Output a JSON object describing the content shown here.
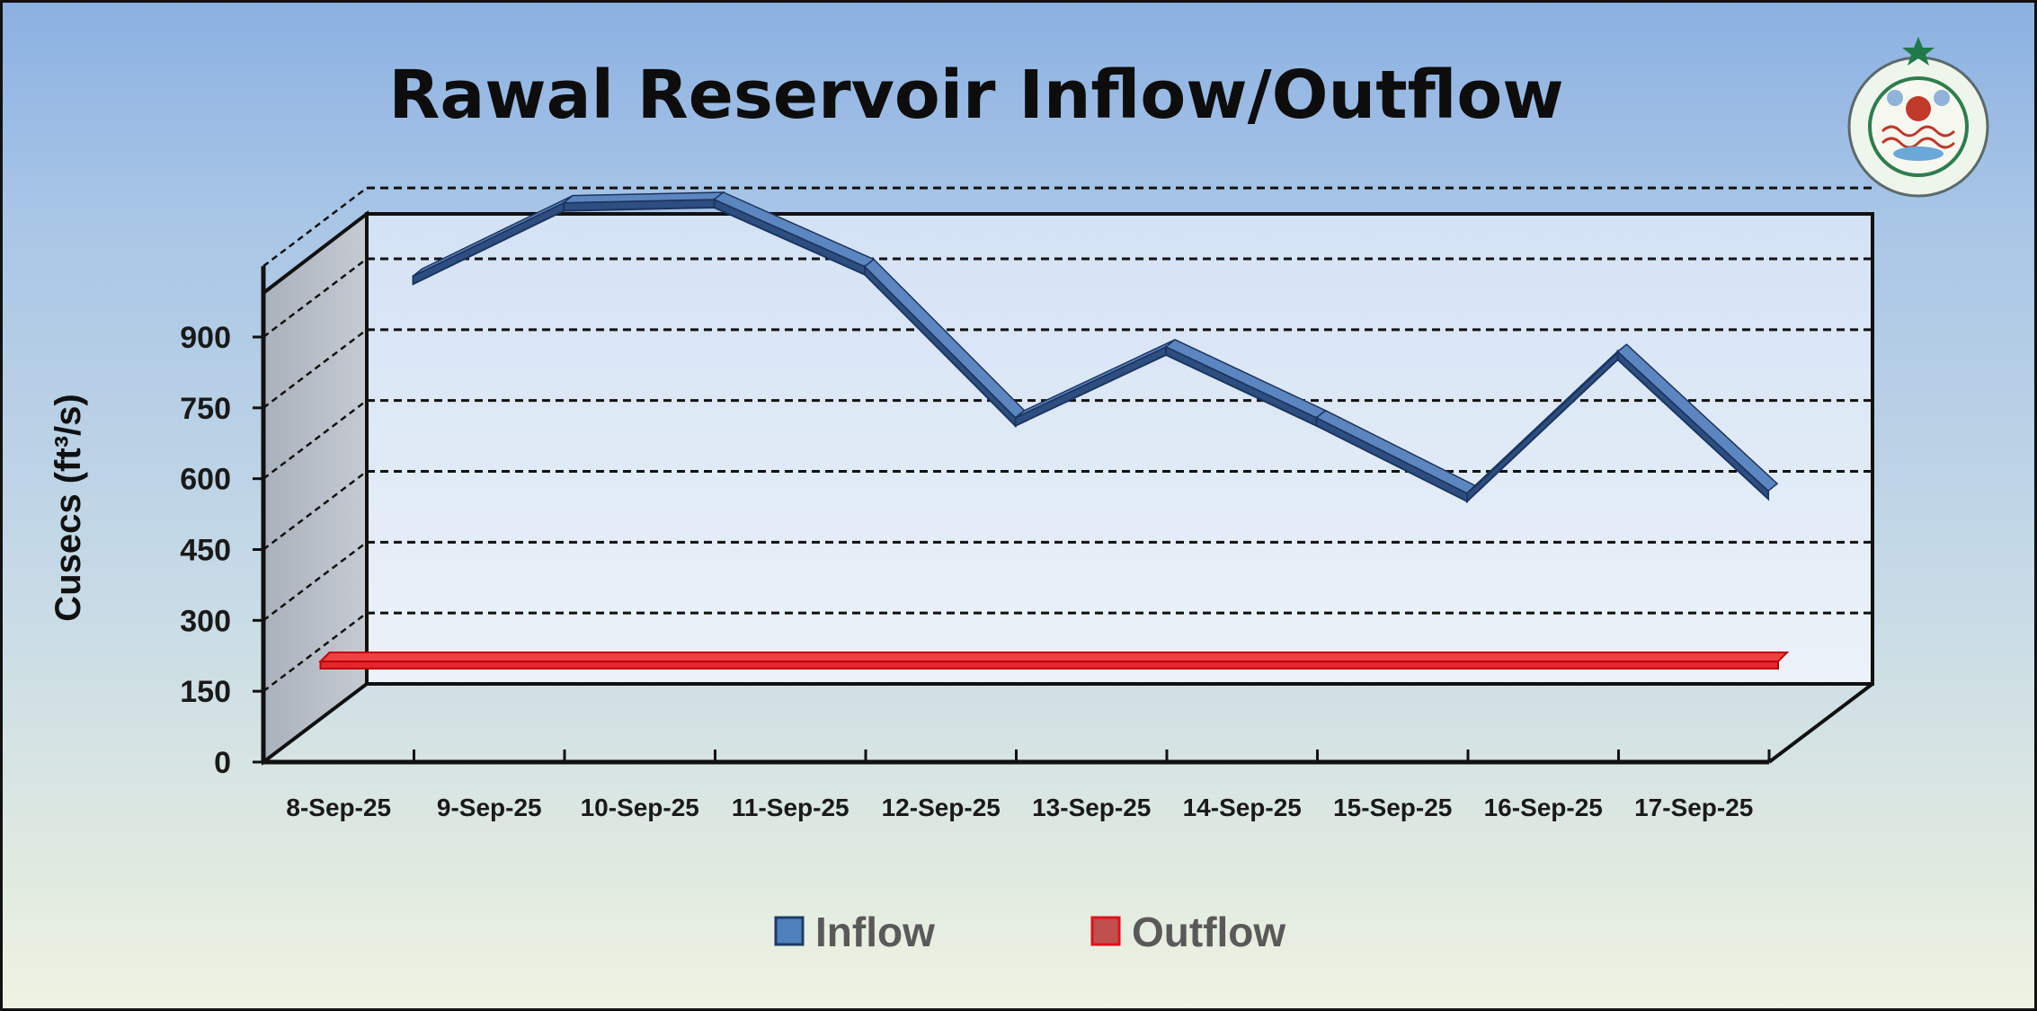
{
  "chart_data": {
    "type": "line",
    "title": "Rawal Reservoir Inflow/Outflow",
    "ylabel": "Cusecs (ft³/s)",
    "xlabel": "",
    "ylim": [
      0,
      1050
    ],
    "yticks": [
      0,
      150,
      300,
      450,
      600,
      750,
      900
    ],
    "yticklabels": [
      "0",
      "150",
      "300",
      "450",
      "600",
      "750",
      "900"
    ],
    "grid": true,
    "legend": "bottom",
    "categories": [
      "8-Sep-25",
      "9-Sep-25",
      "10-Sep-25",
      "11-Sep-25",
      "12-Sep-25",
      "13-Sep-25",
      "14-Sep-25",
      "15-Sep-25",
      "16-Sep-25",
      "17-Sep-25"
    ],
    "series": [
      {
        "name": "Inflow",
        "color": "#4f81bd",
        "values": [
          910,
          1065,
          1072,
          930,
          610,
          760,
          610,
          450,
          750,
          455
        ]
      },
      {
        "name": "Outflow",
        "color": "#e8242c",
        "values": [
          0,
          0,
          0,
          0,
          0,
          0,
          0,
          0,
          0,
          0
        ]
      }
    ]
  }
}
